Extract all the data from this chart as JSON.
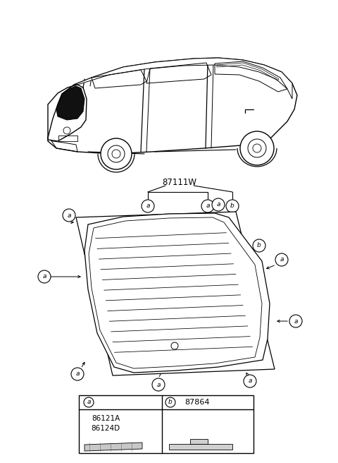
{
  "bg_color": "#ffffff",
  "fig_width": 4.8,
  "fig_height": 6.56,
  "dpi": 100,
  "part_number_label": "87111W",
  "legend_a_codes": "86121A\n86124D",
  "legend_b_code": "87864",
  "circle_label_a": "a",
  "circle_label_b": "b",
  "line_color": "#000000",
  "lw_car": 1.0,
  "lw_glass": 0.9,
  "lw_heat": 0.55,
  "lw_annot": 0.7
}
